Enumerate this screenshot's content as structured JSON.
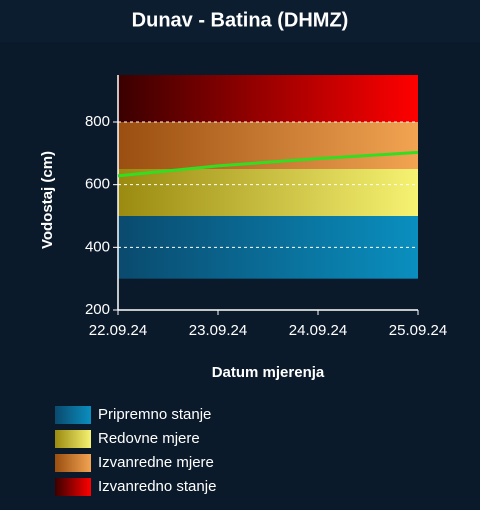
{
  "chart_data": {
    "type": "line",
    "title": "Dunav - Batina (DHMZ)",
    "x_label": "Datum mjerenja",
    "y_label": "Vodostaj (cm)",
    "categories": [
      "22.09.24",
      "23.09.24",
      "24.09.24",
      "25.09.24"
    ],
    "series": [
      {
        "color": "#33dd22",
        "values": [
          628,
          660,
          683,
          703
        ]
      }
    ],
    "ylim": [
      200,
      950
    ],
    "yticks": [
      200,
      400,
      600,
      800
    ],
    "grid": true,
    "bands": [
      {
        "name": "Pripremno stanje",
        "from": 300,
        "to": 500,
        "color": "#0a4a6e",
        "color_light": "#0a8fbf"
      },
      {
        "name": "Redovne mjere",
        "from": 500,
        "to": 650,
        "color": "#9a8a10",
        "color_light": "#f6f272"
      },
      {
        "name": "Izvanredne mjere",
        "from": 650,
        "to": 800,
        "color": "#9a4e10",
        "color_light": "#f2a452"
      },
      {
        "name": "Izvanredno stanje",
        "from": 800,
        "to": 950,
        "color": "#3a0000",
        "color_light": "#ff0000"
      }
    ]
  }
}
